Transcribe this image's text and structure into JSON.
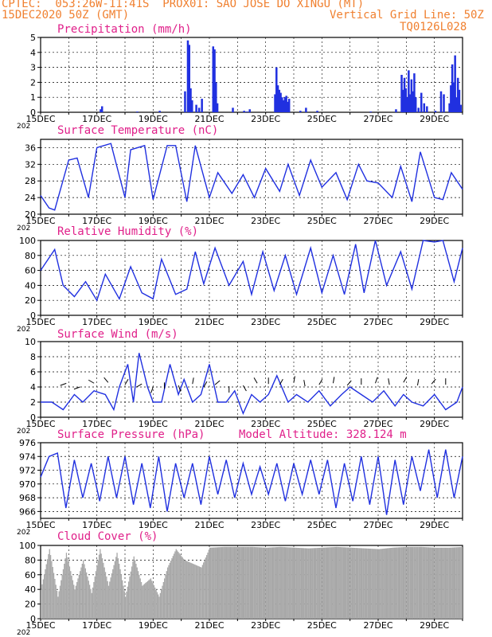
{
  "header": {
    "line1": "CPTEC:  053:26W-11:41S  PROX01: SAO JOSE DO XINGU (MT)",
    "line2_left": "15DEC2020 50Z (GMT)",
    "line2_right": "Vertical Grid Line: 50Z",
    "line3_right": "TQ0126L028"
  },
  "x_ticks": [
    "15DEC",
    "17DEC",
    "19DEC",
    "21DEC",
    "23DEC",
    "25DEC",
    "27DEC",
    "29DEC"
  ],
  "x_ticks_partial": "202",
  "colors": {
    "line": "#2030e0",
    "bar": "#2030e0",
    "title": "#e0208a",
    "header": "#f08030",
    "cloud": "#a8a8a8"
  },
  "model_altitude": "Model Altitude: 328.124 m",
  "chart_data": [
    {
      "type": "bar",
      "title": "Precipitation (mm/h)",
      "ylim": [
        0,
        5
      ],
      "yticks": [
        0,
        1,
        2,
        3,
        4,
        5
      ],
      "x_range": [
        0,
        15
      ],
      "x": [
        2.1,
        2.15,
        3.4,
        4.2,
        5.1,
        5.2,
        5.25,
        5.3,
        5.35,
        5.5,
        5.6,
        5.7,
        6.1,
        6.15,
        6.2,
        6.25,
        6.8,
        7.2,
        7.3,
        7.4,
        8.3,
        8.35,
        8.4,
        8.45,
        8.5,
        8.55,
        8.6,
        8.65,
        8.7,
        8.75,
        8.8,
        9.2,
        9.4,
        9.8,
        11.7,
        12.6,
        12.8,
        12.85,
        12.9,
        12.95,
        13.0,
        13.05,
        13.1,
        13.15,
        13.2,
        13.25,
        13.3,
        13.4,
        13.5,
        13.6,
        13.7,
        14.0,
        14.2,
        14.3,
        14.5,
        14.55,
        14.6,
        14.65,
        14.7,
        14.75,
        14.8,
        14.85,
        14.9
      ],
      "values": [
        0.2,
        0.4,
        0.05,
        0.1,
        1.4,
        4.8,
        4.5,
        1.6,
        0.8,
        0.5,
        0.3,
        0.9,
        4.4,
        4.2,
        2.0,
        0.6,
        0.3,
        0.1,
        0.05,
        0.2,
        1.2,
        3.0,
        1.8,
        1.5,
        1.3,
        1.0,
        0.8,
        1.0,
        1.1,
        0.7,
        0.9,
        0.1,
        0.3,
        0.1,
        0.05,
        0.2,
        2.5,
        1.5,
        2.3,
        1.6,
        1.0,
        2.8,
        1.2,
        2.2,
        1.4,
        2.6,
        1.0,
        0.3,
        1.3,
        0.6,
        0.4,
        0.1,
        1.4,
        1.2,
        0.6,
        1.8,
        3.2,
        2.0,
        3.8,
        1.0,
        2.3,
        1.5,
        0.5
      ]
    },
    {
      "type": "line",
      "title": "Surface Temperature (nC)",
      "ylim": [
        20,
        38
      ],
      "yticks": [
        20,
        24,
        28,
        32,
        36
      ],
      "x": [
        0,
        0.3,
        0.5,
        1.0,
        1.3,
        1.7,
        2.0,
        2.5,
        3.0,
        3.2,
        3.7,
        4.0,
        4.5,
        4.8,
        5.2,
        5.5,
        6.0,
        6.3,
        6.8,
        7.2,
        7.6,
        8.0,
        8.5,
        8.8,
        9.2,
        9.6,
        10.0,
        10.5,
        10.9,
        11.3,
        11.6,
        12.0,
        12.5,
        12.8,
        13.2,
        13.5,
        14.0,
        14.3,
        14.6,
        15.0
      ],
      "values": [
        24.5,
        21.5,
        21,
        33,
        33.5,
        24,
        36,
        37,
        24,
        35.5,
        36.5,
        23.5,
        36.5,
        36.5,
        23,
        36.5,
        24,
        30,
        25,
        29.5,
        24,
        31,
        25.5,
        32,
        24.5,
        33,
        26.5,
        30,
        23.5,
        32,
        28,
        27.5,
        24,
        31.5,
        23,
        35,
        24,
        23.5,
        30,
        26
      ]
    },
    {
      "type": "line",
      "title": "Relative Humidity (%)",
      "ylim": [
        0,
        100
      ],
      "yticks": [
        0,
        20,
        40,
        60,
        80,
        100
      ],
      "x": [
        0,
        0.5,
        0.8,
        1.2,
        1.6,
        2.0,
        2.3,
        2.8,
        3.2,
        3.6,
        4.0,
        4.3,
        4.8,
        5.2,
        5.5,
        5.8,
        6.2,
        6.7,
        7.2,
        7.5,
        7.9,
        8.3,
        8.7,
        9.1,
        9.6,
        10.0,
        10.4,
        10.8,
        11.2,
        11.5,
        11.9,
        12.3,
        12.8,
        13.2,
        13.6,
        14.0,
        14.3,
        14.7,
        15.0
      ],
      "values": [
        60,
        88,
        40,
        25,
        45,
        20,
        55,
        22,
        65,
        30,
        22,
        75,
        28,
        35,
        85,
        42,
        90,
        40,
        72,
        28,
        85,
        33,
        80,
        28,
        90,
        30,
        80,
        28,
        95,
        30,
        100,
        40,
        85,
        35,
        100,
        98,
        100,
        45,
        90
      ]
    },
    {
      "type": "line",
      "title": "Surface Wind (m/s)",
      "ylim": [
        0,
        10
      ],
      "yticks": [
        0,
        2,
        4,
        6,
        8,
        10
      ],
      "x": [
        0,
        0.4,
        0.8,
        1.2,
        1.5,
        1.9,
        2.3,
        2.6,
        2.8,
        3.1,
        3.3,
        3.5,
        3.8,
        4.0,
        4.3,
        4.6,
        4.9,
        5.1,
        5.4,
        5.7,
        6.0,
        6.3,
        6.6,
        6.9,
        7.2,
        7.5,
        7.8,
        8.1,
        8.4,
        8.8,
        9.1,
        9.5,
        9.9,
        10.3,
        10.7,
        11.0,
        11.4,
        11.8,
        12.2,
        12.6,
        12.9,
        13.2,
        13.6,
        14.0,
        14.4,
        14.8,
        15.0
      ],
      "values": [
        2,
        2,
        1,
        3,
        2,
        3.5,
        3,
        1,
        4,
        7,
        2,
        8.5,
        4,
        2,
        2,
        7,
        3,
        5,
        2,
        3,
        7,
        2,
        2,
        3.5,
        0.5,
        3,
        2,
        3,
        5.5,
        2,
        3,
        2,
        3.5,
        1.5,
        3,
        4,
        3,
        2,
        3.5,
        1.5,
        3,
        2,
        1.5,
        3,
        1,
        2,
        4
      ]
    },
    {
      "type": "line",
      "title": "Surface Pressure (hPa)",
      "ylim": [
        965,
        976
      ],
      "yticks": [
        966,
        968,
        970,
        972,
        974,
        976
      ],
      "x": [
        0,
        0.3,
        0.6,
        0.9,
        1.2,
        1.5,
        1.8,
        2.1,
        2.4,
        2.7,
        3.0,
        3.3,
        3.6,
        3.9,
        4.2,
        4.5,
        4.8,
        5.1,
        5.4,
        5.7,
        6.0,
        6.3,
        6.6,
        6.9,
        7.2,
        7.5,
        7.8,
        8.1,
        8.4,
        8.7,
        9.0,
        9.3,
        9.6,
        9.9,
        10.2,
        10.5,
        10.8,
        11.1,
        11.4,
        11.7,
        12.0,
        12.3,
        12.6,
        12.9,
        13.2,
        13.5,
        13.8,
        14.1,
        14.4,
        14.7,
        15.0
      ],
      "values": [
        971,
        974,
        974.5,
        966.5,
        973.5,
        968,
        973,
        967.5,
        974,
        968,
        974,
        967,
        973,
        966.5,
        974,
        966,
        973,
        968,
        973,
        967,
        974,
        968.5,
        973.5,
        968,
        973,
        968.5,
        972.5,
        968.5,
        973,
        967.5,
        973,
        968.5,
        973.5,
        968.5,
        973.5,
        966.5,
        973,
        967.5,
        974,
        967,
        974,
        965.5,
        973.5,
        967,
        974,
        969,
        975,
        968,
        975,
        968,
        974
      ]
    },
    {
      "type": "area",
      "title": "Cloud Cover (%)",
      "ylim": [
        0,
        100
      ],
      "yticks": [
        0,
        20,
        40,
        60,
        80,
        100
      ],
      "x": [
        0,
        0.3,
        0.6,
        0.9,
        1.2,
        1.5,
        1.8,
        2.1,
        2.4,
        2.7,
        3.0,
        3.3,
        3.6,
        3.9,
        4.2,
        4.5,
        4.8,
        5.1,
        5.4,
        5.7,
        6.0,
        6.5,
        7.0,
        7.5,
        8.0,
        8.5,
        9.0,
        9.5,
        10.0,
        10.5,
        11.0,
        11.5,
        12.0,
        12.5,
        13.0,
        13.5,
        14.0,
        14.5,
        15.0
      ],
      "values": [
        40,
        95,
        30,
        90,
        40,
        80,
        35,
        95,
        45,
        90,
        30,
        85,
        45,
        55,
        30,
        70,
        95,
        80,
        75,
        70,
        97,
        98,
        98,
        98,
        97,
        98,
        97,
        96,
        97,
        98,
        97,
        96,
        95,
        97,
        98,
        98,
        97,
        97,
        98
      ]
    }
  ]
}
